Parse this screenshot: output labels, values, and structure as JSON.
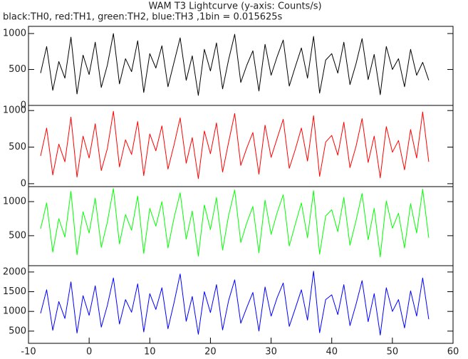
{
  "chart_data": [
    {
      "type": "line",
      "title": "WAM T3 Lightcurve (y-axis: Counts/s)",
      "subtitle": "black:TH0, red:TH1, green:TH2, blue:TH3 ,1bin = 0.015625s",
      "x": [
        -8,
        -7,
        -6,
        -5,
        -4,
        -3,
        -2,
        -1,
        0,
        1,
        2,
        3,
        4,
        5,
        6,
        7,
        8,
        9,
        10,
        11,
        12,
        13,
        14,
        15,
        16,
        17,
        18,
        19,
        20,
        21,
        22,
        23,
        24,
        25,
        26,
        27,
        28,
        29,
        30,
        31,
        32,
        33,
        34,
        35,
        36,
        37,
        38,
        39,
        40,
        41,
        42,
        43,
        44,
        45,
        46,
        47,
        48,
        49,
        50,
        51,
        52,
        53,
        54,
        55,
        56
      ],
      "series": [
        {
          "color": "#000000",
          "values": [
            450,
            820,
            210,
            610,
            380,
            950,
            160,
            700,
            430,
            880,
            250,
            560,
            1000,
            300,
            650,
            470,
            900,
            180,
            720,
            520,
            830,
            260,
            600,
            940,
            350,
            690,
            140,
            780,
            480,
            870,
            230,
            640,
            990,
            320,
            560,
            760,
            200,
            850,
            420,
            680,
            910,
            270,
            540,
            800,
            380,
            960,
            170,
            630,
            720,
            450,
            880,
            290,
            580,
            930,
            360,
            710,
            150,
            820,
            500,
            650,
            260,
            780,
            420,
            600,
            350
          ]
        }
      ],
      "xlim": [
        -10,
        60
      ],
      "ylim": [
        0,
        1100
      ],
      "yticks": [
        0,
        500,
        1000
      ]
    },
    {
      "type": "line",
      "x": [
        -8,
        -7,
        -6,
        -5,
        -4,
        -3,
        -2,
        -1,
        0,
        1,
        2,
        3,
        4,
        5,
        6,
        7,
        8,
        9,
        10,
        11,
        12,
        13,
        14,
        15,
        16,
        17,
        18,
        19,
        20,
        21,
        22,
        23,
        24,
        25,
        26,
        27,
        28,
        29,
        30,
        31,
        32,
        33,
        34,
        35,
        36,
        37,
        38,
        39,
        40,
        41,
        42,
        43,
        44,
        45,
        46,
        47,
        48,
        49,
        50,
        51,
        52,
        53,
        54,
        55,
        56
      ],
      "series": [
        {
          "color": "#ff0000",
          "values": [
            380,
            760,
            120,
            540,
            300,
            910,
            90,
            650,
            350,
            820,
            180,
            480,
            990,
            230,
            600,
            400,
            850,
            110,
            680,
            450,
            790,
            200,
            530,
            900,
            280,
            630,
            70,
            720,
            410,
            830,
            160,
            570,
            960,
            250,
            490,
            700,
            130,
            800,
            360,
            620,
            880,
            210,
            470,
            760,
            310,
            930,
            100,
            570,
            660,
            390,
            840,
            220,
            510,
            890,
            290,
            650,
            80,
            780,
            430,
            590,
            190,
            740,
            350,
            980,
            300
          ]
        }
      ],
      "xlim": [
        -10,
        60
      ],
      "ylim": [
        -40,
        1070
      ],
      "yticks": [
        0,
        500,
        1000
      ]
    },
    {
      "type": "line",
      "x": [
        -8,
        -7,
        -6,
        -5,
        -4,
        -3,
        -2,
        -1,
        0,
        1,
        2,
        3,
        4,
        5,
        6,
        7,
        8,
        9,
        10,
        11,
        12,
        13,
        14,
        15,
        16,
        17,
        18,
        19,
        20,
        21,
        22,
        23,
        24,
        25,
        26,
        27,
        28,
        29,
        30,
        31,
        32,
        33,
        34,
        35,
        36,
        37,
        38,
        39,
        40,
        41,
        42,
        43,
        44,
        45,
        46,
        47,
        48,
        49,
        50,
        51,
        52,
        53,
        54,
        55,
        56
      ],
      "series": [
        {
          "color": "#00ff00",
          "values": [
            600,
            980,
            260,
            750,
            480,
            1150,
            220,
            850,
            540,
            1050,
            330,
            700,
            1190,
            380,
            810,
            580,
            1080,
            240,
            900,
            640,
            1000,
            320,
            760,
            1130,
            450,
            860,
            200,
            950,
            590,
            1060,
            290,
            800,
            1170,
            400,
            690,
            930,
            250,
            1020,
            520,
            840,
            1100,
            350,
            670,
            980,
            470,
            1160,
            230,
            790,
            880,
            560,
            1060,
            360,
            720,
            1120,
            440,
            900,
            190,
            1010,
            610,
            830,
            320,
            970,
            540,
            1180,
            470
          ]
        }
      ],
      "xlim": [
        -10,
        60
      ],
      "ylim": [
        60,
        1220
      ],
      "yticks": [
        500,
        1000
      ]
    },
    {
      "type": "line",
      "x": [
        -8,
        -7,
        -6,
        -5,
        -4,
        -3,
        -2,
        -1,
        0,
        1,
        2,
        3,
        4,
        5,
        6,
        7,
        8,
        9,
        10,
        11,
        12,
        13,
        14,
        15,
        16,
        17,
        18,
        19,
        20,
        21,
        22,
        23,
        24,
        25,
        26,
        27,
        28,
        29,
        30,
        31,
        32,
        33,
        34,
        35,
        36,
        37,
        38,
        39,
        40,
        41,
        42,
        43,
        44,
        45,
        46,
        47,
        48,
        49,
        50,
        51,
        52,
        53,
        54,
        55,
        56
      ],
      "series": [
        {
          "color": "#0000ff",
          "values": [
            950,
            1550,
            520,
            1250,
            820,
            1750,
            450,
            1400,
            900,
            1650,
            600,
            1150,
            1850,
            680,
            1300,
            980,
            1700,
            480,
            1450,
            1050,
            1600,
            560,
            1220,
            1950,
            750,
            1380,
            420,
            1500,
            970,
            1680,
            530,
            1280,
            1800,
            700,
            1100,
            1480,
            500,
            1620,
            880,
            1350,
            1720,
            620,
            1080,
            1550,
            780,
            2020,
            460,
            1300,
            1420,
            920,
            1680,
            640,
            1180,
            1780,
            740,
            1450,
            400,
            1600,
            1000,
            1300,
            580,
            1520,
            880,
            1850,
            800
          ]
        }
      ],
      "xlim": [
        -10,
        60
      ],
      "ylim": [
        190,
        2160
      ],
      "yticks": [
        500,
        1000,
        1500,
        2000
      ],
      "xticks": [
        -10,
        0,
        10,
        20,
        30,
        40,
        50,
        60
      ]
    }
  ]
}
